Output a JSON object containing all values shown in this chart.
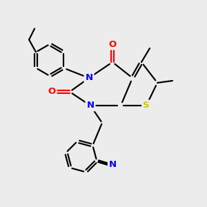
{
  "bg_color": "#ececec",
  "bond_color": "#000000",
  "n_color": "#0000ff",
  "o_color": "#ff0000",
  "s_color": "#cccc00",
  "n_label": "N",
  "o_label": "O",
  "s_label": "S",
  "figsize": [
    3.0,
    3.0
  ],
  "dpi": 100
}
